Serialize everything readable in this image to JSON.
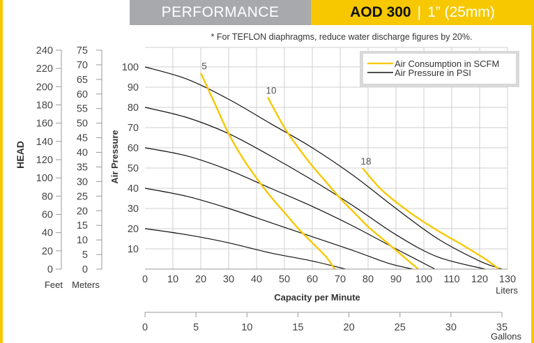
{
  "header": {
    "section": "PERFORMANCE",
    "model": "AOD 300",
    "separator": "|",
    "size": "1” (25mm)"
  },
  "note": "* For TEFLON diaphragms, reduce water discharge figures by 20%.",
  "colors": {
    "accent": "#f7c800",
    "header_gray": "#a7a9ac",
    "pressure_line": "#111111",
    "grid": "#cfcfcf"
  },
  "chart_data": {
    "type": "line",
    "xlabel": "Capacity per Minute",
    "ylabel": "Air Pressure",
    "x_unit": "Liters",
    "x_ticks": [
      0,
      10,
      20,
      30,
      40,
      50,
      60,
      70,
      80,
      90,
      100,
      110,
      120,
      130
    ],
    "xlim": [
      0,
      130
    ],
    "y_ticks": [
      10,
      20,
      30,
      40,
      50,
      60,
      70,
      80,
      90,
      100
    ],
    "ylim": [
      0,
      100
    ],
    "gallons_axis": {
      "unit": "Gallons",
      "ticks": [
        0,
        5,
        10,
        15,
        20,
        25,
        30,
        35
      ],
      "lim": [
        0,
        35
      ]
    },
    "head_label": "HEAD",
    "feet_axis": {
      "unit": "Feet",
      "ticks": [
        0,
        20,
        40,
        60,
        80,
        100,
        120,
        140,
        160,
        180,
        200,
        220,
        240
      ],
      "lim": [
        0,
        240
      ]
    },
    "meters_axis": {
      "unit": "Meters",
      "ticks": [
        0,
        5,
        10,
        15,
        20,
        25,
        30,
        35,
        40,
        45,
        50,
        55,
        60,
        65,
        70,
        75
      ],
      "lim": [
        0,
        75
      ]
    },
    "legend": {
      "placement": "top-right",
      "entries": [
        {
          "label": "Air Consumption in SCFM",
          "color": "#f7c800"
        },
        {
          "label": "Air Pressure in PSI",
          "color": "#111111"
        }
      ]
    },
    "series": [
      {
        "kind": "pressure",
        "values": [
          [
            0,
            100
          ],
          [
            15,
            94
          ],
          [
            30,
            84
          ],
          [
            45,
            72
          ],
          [
            60,
            60
          ],
          [
            75,
            46
          ],
          [
            90,
            30
          ],
          [
            105,
            15
          ],
          [
            120,
            4
          ],
          [
            128,
            0
          ]
        ]
      },
      {
        "kind": "pressure",
        "values": [
          [
            0,
            80
          ],
          [
            15,
            75
          ],
          [
            30,
            67
          ],
          [
            45,
            56
          ],
          [
            60,
            44
          ],
          [
            75,
            31
          ],
          [
            90,
            17
          ],
          [
            105,
            6
          ],
          [
            122,
            0
          ]
        ]
      },
      {
        "kind": "pressure",
        "values": [
          [
            0,
            60
          ],
          [
            15,
            56
          ],
          [
            30,
            49
          ],
          [
            45,
            40
          ],
          [
            60,
            31
          ],
          [
            75,
            21
          ],
          [
            90,
            10
          ],
          [
            104,
            0
          ]
        ]
      },
      {
        "kind": "pressure",
        "values": [
          [
            0,
            40
          ],
          [
            15,
            36
          ],
          [
            30,
            30
          ],
          [
            45,
            23
          ],
          [
            60,
            16
          ],
          [
            75,
            9
          ],
          [
            87,
            3
          ],
          [
            96,
            0
          ]
        ]
      },
      {
        "kind": "pressure",
        "values": [
          [
            0,
            20
          ],
          [
            15,
            17
          ],
          [
            30,
            13
          ],
          [
            45,
            8
          ],
          [
            60,
            4
          ],
          [
            72,
            0
          ]
        ]
      },
      {
        "kind": "air",
        "name": "5",
        "values": [
          [
            20,
            97
          ],
          [
            25,
            82
          ],
          [
            30,
            67
          ],
          [
            35,
            55
          ],
          [
            40,
            45
          ],
          [
            45,
            36
          ],
          [
            50,
            28
          ],
          [
            55,
            20
          ],
          [
            60,
            13
          ],
          [
            65,
            6
          ],
          [
            68,
            0
          ]
        ]
      },
      {
        "kind": "air",
        "name": "10",
        "values": [
          [
            44,
            85
          ],
          [
            50,
            70
          ],
          [
            55,
            60
          ],
          [
            60,
            51
          ],
          [
            65,
            43
          ],
          [
            70,
            35
          ],
          [
            75,
            28
          ],
          [
            80,
            21
          ],
          [
            86,
            14
          ],
          [
            92,
            7
          ],
          [
            98,
            0
          ]
        ]
      },
      {
        "kind": "air",
        "name": "18",
        "values": [
          [
            78,
            50
          ],
          [
            85,
            39
          ],
          [
            95,
            28
          ],
          [
            105,
            19
          ],
          [
            115,
            11
          ],
          [
            122,
            5
          ],
          [
            127,
            0
          ]
        ]
      }
    ]
  }
}
